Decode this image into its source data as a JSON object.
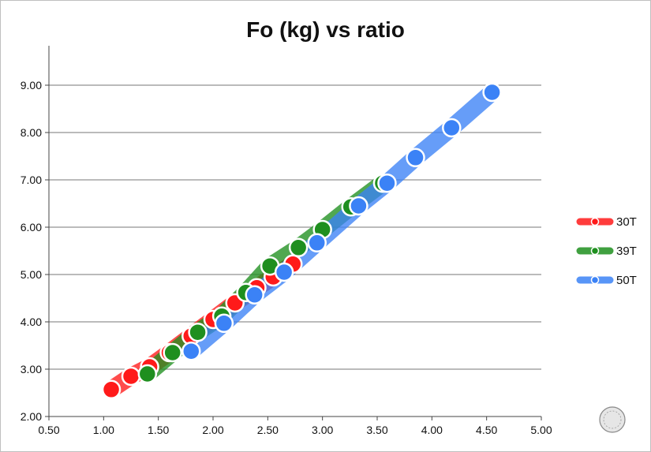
{
  "chart_data": {
    "type": "line",
    "title": "Fo (kg) vs ratio",
    "xlabel": "",
    "ylabel": "",
    "xlim": [
      0.5,
      5.0
    ],
    "ylim": [
      2.0,
      9.0
    ],
    "x_ticks": [
      "0.50",
      "1.00",
      "1.50",
      "2.00",
      "2.50",
      "3.00",
      "3.50",
      "4.00",
      "4.50",
      "5.00"
    ],
    "y_ticks": [
      "2.00",
      "3.00",
      "4.00",
      "5.00",
      "6.00",
      "7.00",
      "8.00",
      "9.00"
    ],
    "grid": "horizontal",
    "legend_position": "right",
    "series": [
      {
        "name": "30T",
        "color": "#ff1a1a",
        "x": [
          1.07,
          1.25,
          1.42,
          1.6,
          1.8,
          2.0,
          2.2,
          2.4,
          2.55,
          2.73
        ],
        "y": [
          2.57,
          2.85,
          3.05,
          3.35,
          3.7,
          4.05,
          4.4,
          4.72,
          4.95,
          5.22
        ]
      },
      {
        "name": "39T",
        "color": "#1f8f1f",
        "x": [
          1.4,
          1.63,
          1.86,
          2.08,
          2.3,
          2.52,
          2.78,
          3.0,
          3.26,
          3.55
        ],
        "y": [
          2.9,
          3.35,
          3.78,
          4.12,
          4.62,
          5.18,
          5.57,
          5.95,
          6.43,
          6.93
        ]
      },
      {
        "name": "50T",
        "color": "#3b82f6",
        "x": [
          1.8,
          2.1,
          2.38,
          2.65,
          2.95,
          3.33,
          3.59,
          3.85,
          4.18,
          4.55
        ],
        "y": [
          3.38,
          3.97,
          4.57,
          5.05,
          5.67,
          6.45,
          6.93,
          7.47,
          8.1,
          8.85
        ]
      }
    ]
  }
}
